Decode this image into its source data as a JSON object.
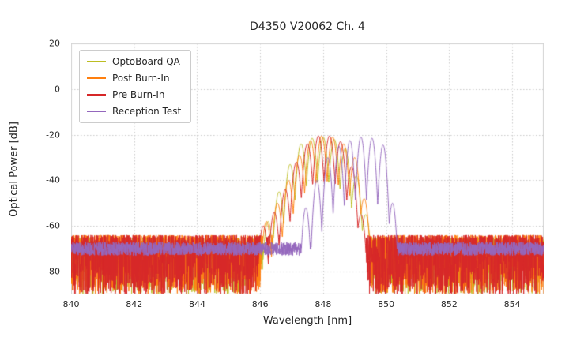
{
  "chart_data": {
    "type": "line",
    "title": "D4350 V20062 Ch. 4",
    "xlabel": "Wavelength [nm]",
    "ylabel": "Optical Power [dB]",
    "xlim": [
      840,
      855
    ],
    "ylim": [
      -90,
      20
    ],
    "x_ticks": [
      840,
      842,
      844,
      846,
      848,
      850,
      852,
      854
    ],
    "y_ticks": [
      20,
      0,
      -20,
      -40,
      -60,
      -80
    ],
    "grid": true,
    "legend_position": "upper left",
    "noise_seed": 42,
    "series": [
      {
        "name": "OptoBoard QA",
        "color": "#bcbd22",
        "mode_curvature": 650,
        "modes": [
          [
            845.9,
            -64
          ],
          [
            846.25,
            -58
          ],
          [
            846.6,
            -45
          ],
          [
            846.95,
            -33
          ],
          [
            847.3,
            -24
          ],
          [
            847.65,
            -21.5
          ],
          [
            848.0,
            -21
          ],
          [
            848.35,
            -22
          ],
          [
            848.7,
            -26
          ],
          [
            849.05,
            -38
          ],
          [
            849.35,
            -55
          ]
        ],
        "noise": {
          "top": -65,
          "depth": 25,
          "bias": 1.6
        }
      },
      {
        "name": "Post Burn-In",
        "color": "#ff7f0e",
        "mode_curvature": 650,
        "modes": [
          [
            846.2,
            -58
          ],
          [
            846.55,
            -50
          ],
          [
            846.9,
            -40
          ],
          [
            847.25,
            -29
          ],
          [
            847.6,
            -22.5
          ],
          [
            847.95,
            -20.5
          ],
          [
            848.3,
            -21
          ],
          [
            848.65,
            -24
          ],
          [
            849.0,
            -30
          ],
          [
            849.3,
            -48
          ]
        ],
        "noise": {
          "top": -64,
          "depth": 26,
          "bias": 1.6
        }
      },
      {
        "name": "Pre Burn-In",
        "color": "#d62728",
        "mode_curvature": 650,
        "modes": [
          [
            846.1,
            -60
          ],
          [
            846.45,
            -54
          ],
          [
            846.8,
            -44
          ],
          [
            847.15,
            -32
          ],
          [
            847.5,
            -24
          ],
          [
            847.85,
            -20.5
          ],
          [
            848.2,
            -20.5
          ],
          [
            848.55,
            -23
          ],
          [
            848.9,
            -34
          ],
          [
            849.2,
            -55
          ]
        ],
        "noise": {
          "top": -64,
          "depth": 27,
          "bias": 1.6
        }
      },
      {
        "name": "Reception Test",
        "color": "#9467bd",
        "mode_curvature": 900,
        "modes": [
          [
            847.45,
            -52
          ],
          [
            847.8,
            -40
          ],
          [
            848.15,
            -30
          ],
          [
            848.5,
            -25
          ],
          [
            848.85,
            -22.5
          ],
          [
            849.2,
            -21
          ],
          [
            849.55,
            -21.5
          ],
          [
            849.9,
            -24.5
          ],
          [
            850.2,
            -50
          ]
        ],
        "noise": {
          "top": -67,
          "depth": 6,
          "bias": 1.0
        }
      }
    ]
  }
}
